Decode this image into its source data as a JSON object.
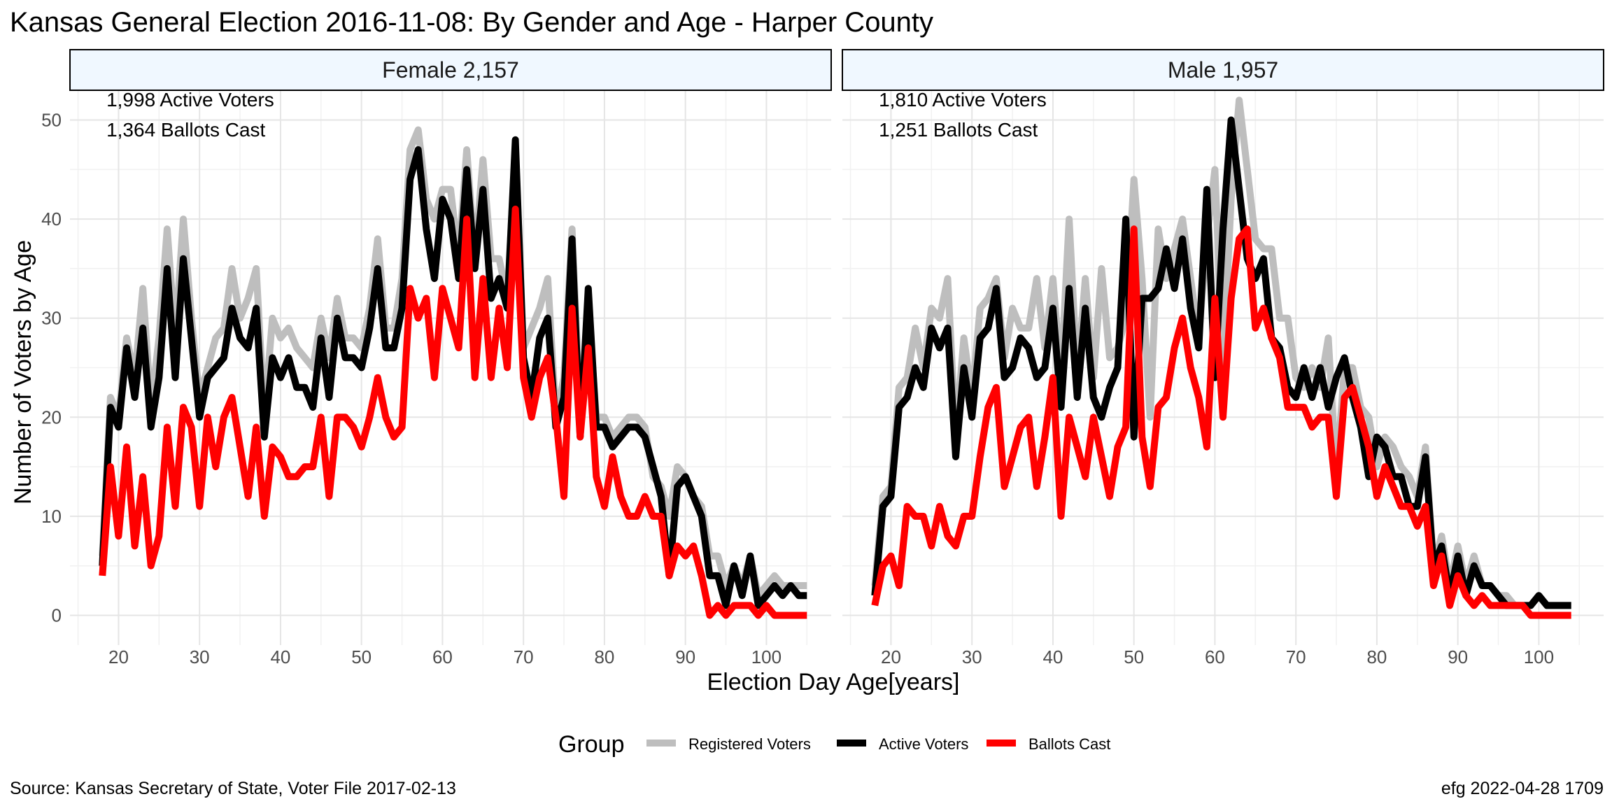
{
  "chart_data": {
    "type": "line",
    "title": "Kansas General Election 2016-11-08:  By Gender and Age - Harper County",
    "xlabel": "Election Day Age[years]",
    "ylabel": "Number of Voters by Age",
    "xlim": [
      14,
      108
    ],
    "ylim": [
      -3,
      53
    ],
    "x_ticks": [
      20,
      30,
      40,
      50,
      60,
      70,
      80,
      90,
      100
    ],
    "y_ticks": [
      0,
      10,
      20,
      30,
      40,
      50
    ],
    "grid": true,
    "legend": {
      "title": "Group",
      "position": "bottom",
      "items": [
        {
          "label": "Registered Voters",
          "color": "#bebebe"
        },
        {
          "label": "Active Voters",
          "color": "#000000"
        },
        {
          "label": "Ballots Cast",
          "color": "#ff0000"
        }
      ]
    },
    "source": "Source:  Kansas Secretary of State, Voter File  2017-02-13",
    "credit": "efg 2022-04-28 1709",
    "panels": [
      {
        "strip": "Female 2,157",
        "annotations": [
          "1,998 Active Voters",
          "1,364 Ballots Cast"
        ],
        "x": [
          18,
          19,
          20,
          21,
          22,
          23,
          24,
          25,
          26,
          27,
          28,
          29,
          30,
          31,
          32,
          33,
          34,
          35,
          36,
          37,
          38,
          39,
          40,
          41,
          42,
          43,
          44,
          45,
          46,
          47,
          48,
          49,
          50,
          51,
          52,
          53,
          54,
          55,
          56,
          57,
          58,
          59,
          60,
          61,
          62,
          63,
          64,
          65,
          66,
          67,
          68,
          69,
          70,
          71,
          72,
          73,
          74,
          75,
          76,
          77,
          78,
          79,
          80,
          81,
          82,
          83,
          84,
          85,
          86,
          87,
          88,
          89,
          90,
          91,
          92,
          93,
          94,
          95,
          96,
          97,
          98,
          99,
          100,
          101,
          102,
          103,
          104,
          105
        ],
        "series": [
          {
            "name": "Registered Voters",
            "color": "#bebebe",
            "values": [
              6,
              22,
              20,
              28,
              24,
              33,
              21,
              28,
              39,
              28,
              40,
              30,
              22,
              25,
              28,
              29,
              35,
              30,
              32,
              35,
              20,
              30,
              28,
              29,
              27,
              26,
              25,
              30,
              26,
              32,
              28,
              28,
              27,
              31,
              38,
              29,
              29,
              34,
              47,
              49,
              42,
              40,
              43,
              43,
              36,
              47,
              36,
              46,
              36,
              36,
              32,
              47,
              27,
              29,
              31,
              34,
              20,
              24,
              39,
              20,
              31,
              20,
              20,
              18,
              19,
              20,
              20,
              19,
              14,
              13,
              10,
              15,
              14,
              12,
              11,
              6,
              6,
              3,
              5,
              3,
              6,
              2,
              3,
              4,
              3,
              3,
              3,
              3
            ]
          },
          {
            "name": "Active Voters",
            "color": "#000000",
            "values": [
              5,
              21,
              19,
              27,
              22,
              29,
              19,
              24,
              35,
              24,
              36,
              28,
              20,
              24,
              25,
              26,
              31,
              28,
              27,
              31,
              18,
              26,
              24,
              26,
              23,
              23,
              21,
              28,
              22,
              30,
              26,
              26,
              25,
              29,
              35,
              27,
              27,
              31,
              44,
              47,
              39,
              34,
              42,
              40,
              34,
              45,
              35,
              43,
              32,
              34,
              31,
              48,
              26,
              22,
              28,
              30,
              19,
              22,
              38,
              18,
              33,
              19,
              19,
              17,
              18,
              19,
              19,
              18,
              15,
              12,
              4,
              13,
              14,
              12,
              10,
              4,
              4,
              1,
              5,
              2,
              6,
              1,
              2,
              3,
              2,
              3,
              2,
              2
            ]
          },
          {
            "name": "Ballots Cast",
            "color": "#ff0000",
            "values": [
              4,
              15,
              8,
              17,
              7,
              14,
              5,
              8,
              19,
              11,
              21,
              19,
              11,
              20,
              15,
              20,
              22,
              17,
              12,
              19,
              10,
              17,
              16,
              14,
              14,
              15,
              15,
              20,
              12,
              20,
              20,
              19,
              17,
              20,
              24,
              20,
              18,
              19,
              33,
              30,
              32,
              24,
              33,
              30,
              27,
              40,
              24,
              34,
              24,
              31,
              25,
              41,
              24,
              20,
              24,
              26,
              20,
              12,
              31,
              18,
              27,
              14,
              11,
              16,
              12,
              10,
              10,
              12,
              10,
              10,
              4,
              7,
              6,
              7,
              4,
              0,
              1,
              0,
              1,
              1,
              1,
              0,
              1,
              0,
              0,
              0,
              0,
              0
            ]
          }
        ]
      },
      {
        "strip": "Male 1,957",
        "annotations": [
          "1,810 Active Voters",
          "1,251 Ballots Cast"
        ],
        "x": [
          18,
          19,
          20,
          21,
          22,
          23,
          24,
          25,
          26,
          27,
          28,
          29,
          30,
          31,
          32,
          33,
          34,
          35,
          36,
          37,
          38,
          39,
          40,
          41,
          42,
          43,
          44,
          45,
          46,
          47,
          48,
          49,
          50,
          51,
          52,
          53,
          54,
          55,
          56,
          57,
          58,
          59,
          60,
          61,
          62,
          63,
          64,
          65,
          66,
          67,
          68,
          69,
          70,
          71,
          72,
          73,
          74,
          75,
          76,
          77,
          78,
          79,
          80,
          81,
          82,
          83,
          84,
          85,
          86,
          87,
          88,
          89,
          90,
          91,
          92,
          93,
          94,
          95,
          96,
          97,
          98,
          99,
          100,
          101,
          102,
          103,
          104
        ],
        "series": [
          {
            "name": "Registered Voters",
            "color": "#bebebe",
            "values": [
              3,
              12,
              13,
              23,
              24,
              29,
              25,
              31,
              30,
              34,
              18,
              28,
              22,
              31,
              32,
              34,
              26,
              31,
              29,
              29,
              34,
              27,
              34,
              24,
              40,
              24,
              34,
              24,
              35,
              26,
              27,
              30,
              44,
              34,
              20,
              39,
              34,
              37,
              40,
              34,
              28,
              38,
              45,
              25,
              42,
              52,
              45,
              38,
              37,
              37,
              30,
              30,
              24,
              23,
              25,
              23,
              28,
              14,
              25,
              25,
              21,
              20,
              15,
              18,
              17,
              15,
              14,
              12,
              17,
              5,
              8,
              3,
              7,
              3,
              6,
              3,
              3,
              2,
              2,
              1,
              1,
              1,
              2,
              1,
              1,
              1,
              1
            ]
          },
          {
            "name": "Active Voters",
            "color": "#000000",
            "values": [
              2,
              11,
              12,
              21,
              22,
              25,
              23,
              29,
              27,
              29,
              16,
              25,
              20,
              28,
              29,
              33,
              24,
              25,
              28,
              27,
              24,
              25,
              31,
              21,
              33,
              22,
              31,
              22,
              20,
              23,
              25,
              40,
              18,
              32,
              32,
              33,
              37,
              33,
              38,
              31,
              27,
              43,
              24,
              39,
              50,
              43,
              36,
              34,
              36,
              28,
              27,
              23,
              22,
              25,
              22,
              25,
              21,
              24,
              26,
              22,
              19,
              14,
              18,
              17,
              14,
              14,
              11,
              11,
              16,
              5,
              7,
              2,
              6,
              2,
              5,
              3,
              3,
              2,
              1,
              1,
              1,
              1,
              2,
              1,
              1,
              1,
              1
            ]
          },
          {
            "name": "Ballots Cast",
            "color": "#ff0000",
            "values": [
              1,
              5,
              6,
              3,
              11,
              10,
              10,
              7,
              11,
              8,
              7,
              10,
              10,
              16,
              21,
              23,
              13,
              16,
              19,
              20,
              13,
              18,
              24,
              10,
              20,
              17,
              14,
              20,
              16,
              12,
              17,
              19,
              39,
              18,
              13,
              21,
              22,
              27,
              30,
              25,
              22,
              17,
              32,
              20,
              32,
              38,
              39,
              29,
              31,
              28,
              26,
              21,
              21,
              21,
              19,
              20,
              20,
              12,
              22,
              23,
              20,
              17,
              12,
              15,
              13,
              11,
              11,
              9,
              11,
              3,
              6,
              1,
              4,
              2,
              1,
              2,
              1,
              1,
              1,
              1,
              1,
              0,
              0,
              0,
              0,
              0,
              0
            ]
          }
        ]
      }
    ]
  }
}
